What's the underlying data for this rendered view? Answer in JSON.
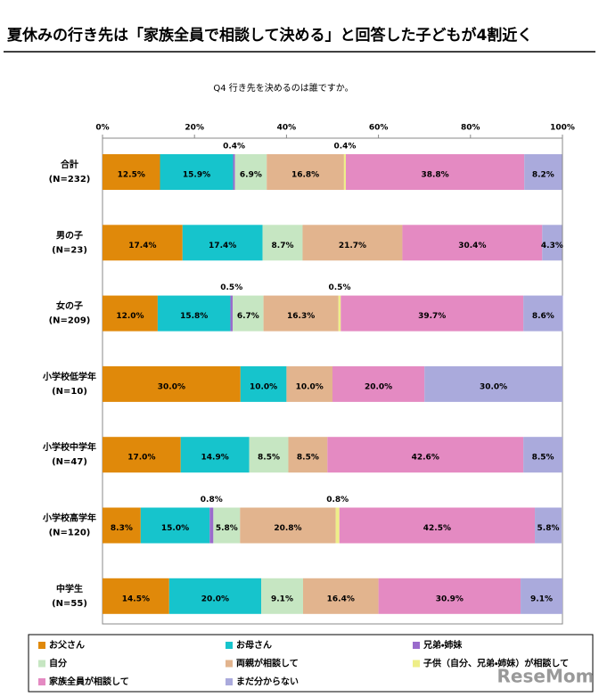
{
  "chart_data": {
    "type": "stacked_bar_horizontal",
    "title": "夏休みの行き先は「家族全員で相談して決める」と回答した子どもが4割近く",
    "subtitle": "Q4 行き先を決めるのは誰ですか。",
    "watermark": "ReseMom",
    "categories": [
      "合計",
      "男の子",
      "女の子",
      "小学校低学年",
      "小学校中学年",
      "小学校高学年",
      "中学生"
    ],
    "category_notes": [
      "(N=232)",
      "(N=23)",
      "(N=209)",
      "(N=10)",
      "(N=47)",
      "(N=120)",
      "(N=55)"
    ],
    "xlim": [
      0,
      100
    ],
    "xticks": [
      {
        "value": 0,
        "label": "0%"
      },
      {
        "value": 20,
        "label": "20%"
      },
      {
        "value": 40,
        "label": "40%"
      },
      {
        "value": 60,
        "label": "60%"
      },
      {
        "value": 80,
        "label": "80%"
      },
      {
        "value": 100,
        "label": "100%"
      }
    ],
    "grid": false,
    "series": [
      {
        "name": "お父さん",
        "color": "#e0890a",
        "values": [
          12.5,
          17.4,
          12.0,
          30.0,
          17.0,
          8.3,
          14.5
        ],
        "value_labels": [
          "12.5%",
          "17.4%",
          "12.0%",
          "30.0%",
          "17.0%",
          "8.3%",
          "14.5%"
        ]
      },
      {
        "name": "お母さん",
        "color": "#16c4cc",
        "values": [
          15.9,
          17.4,
          15.8,
          10.0,
          14.9,
          15.0,
          20.0
        ],
        "value_labels": [
          "15.9%",
          "17.4%",
          "15.8%",
          "10.0%",
          "14.9%",
          "15.0%",
          "20.0%"
        ]
      },
      {
        "name": "兄弟・姉妹",
        "color": "#9a6ccc",
        "values": [
          0.4,
          0,
          0.5,
          0,
          0,
          0.8,
          0
        ],
        "value_labels": [
          "0.4%",
          null,
          "0.5%",
          null,
          null,
          "0.8%",
          null
        ]
      },
      {
        "name": "自分",
        "color": "#c6e6c2",
        "values": [
          6.9,
          8.7,
          6.7,
          0,
          8.5,
          5.8,
          9.1
        ],
        "value_labels": [
          "6.9%",
          "8.7%",
          "6.7%",
          null,
          "8.5%",
          "5.8%",
          "9.1%"
        ]
      },
      {
        "name": "両親が相談して",
        "color": "#e2b48e",
        "values": [
          16.8,
          21.7,
          16.3,
          10.0,
          8.5,
          20.8,
          16.4
        ],
        "value_labels": [
          "16.8%",
          "21.7%",
          "16.3%",
          "10.0%",
          "8.5%",
          "20.8%",
          "16.4%"
        ]
      },
      {
        "name": "子供（自分、兄弟・姉妹）が相談して",
        "color": "#eeee88",
        "values": [
          0.4,
          0,
          0.5,
          0,
          0,
          0.8,
          0
        ],
        "value_labels": [
          "0.4%",
          null,
          "0.5%",
          null,
          null,
          "0.8%",
          null
        ]
      },
      {
        "name": "家族全員が相談して",
        "color": "#e48ac2",
        "values": [
          38.8,
          30.4,
          39.7,
          20.0,
          42.6,
          42.5,
          30.9
        ],
        "value_labels": [
          "38.8%",
          "30.4%",
          "39.7%",
          "20.0%",
          "42.6%",
          "42.5%",
          "30.9%"
        ]
      },
      {
        "name": "まだ分からない",
        "color": "#aaaadc",
        "values": [
          8.2,
          4.3,
          8.6,
          30.0,
          8.5,
          5.8,
          9.1
        ],
        "value_labels": [
          "8.2%",
          "4.3%",
          "8.6%",
          "30.0%",
          "8.5%",
          "5.8%",
          "9.1%"
        ]
      }
    ]
  }
}
